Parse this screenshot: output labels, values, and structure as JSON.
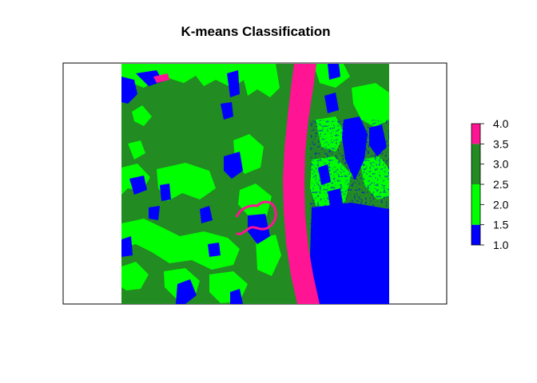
{
  "chart_data": {
    "type": "heatmap",
    "title": "K-means Classification",
    "xlabel": "",
    "ylabel": "",
    "classes": [
      {
        "value": 1,
        "color": "#0000ff"
      },
      {
        "value": 2,
        "color": "#00ff00"
      },
      {
        "value": 3,
        "color": "#228b22"
      },
      {
        "value": 4,
        "color": "#ff1493"
      }
    ],
    "legend": {
      "placement": "right",
      "range": [
        1.0,
        4.0
      ],
      "tick_labels": [
        "1.0",
        "1.5",
        "2.0",
        "2.5",
        "3.0",
        "3.5",
        "4.0"
      ],
      "tick_values": [
        1.0,
        1.5,
        2.0,
        2.5,
        3.0,
        3.5,
        4.0
      ],
      "bands": [
        {
          "from": 1.0,
          "to": 1.5,
          "color": "#0000ff"
        },
        {
          "from": 1.5,
          "to": 2.5,
          "color": "#00ff00"
        },
        {
          "from": 2.5,
          "to": 3.5,
          "color": "#228b22"
        },
        {
          "from": 3.5,
          "to": 4.0,
          "color": "#ff1493"
        }
      ]
    }
  }
}
